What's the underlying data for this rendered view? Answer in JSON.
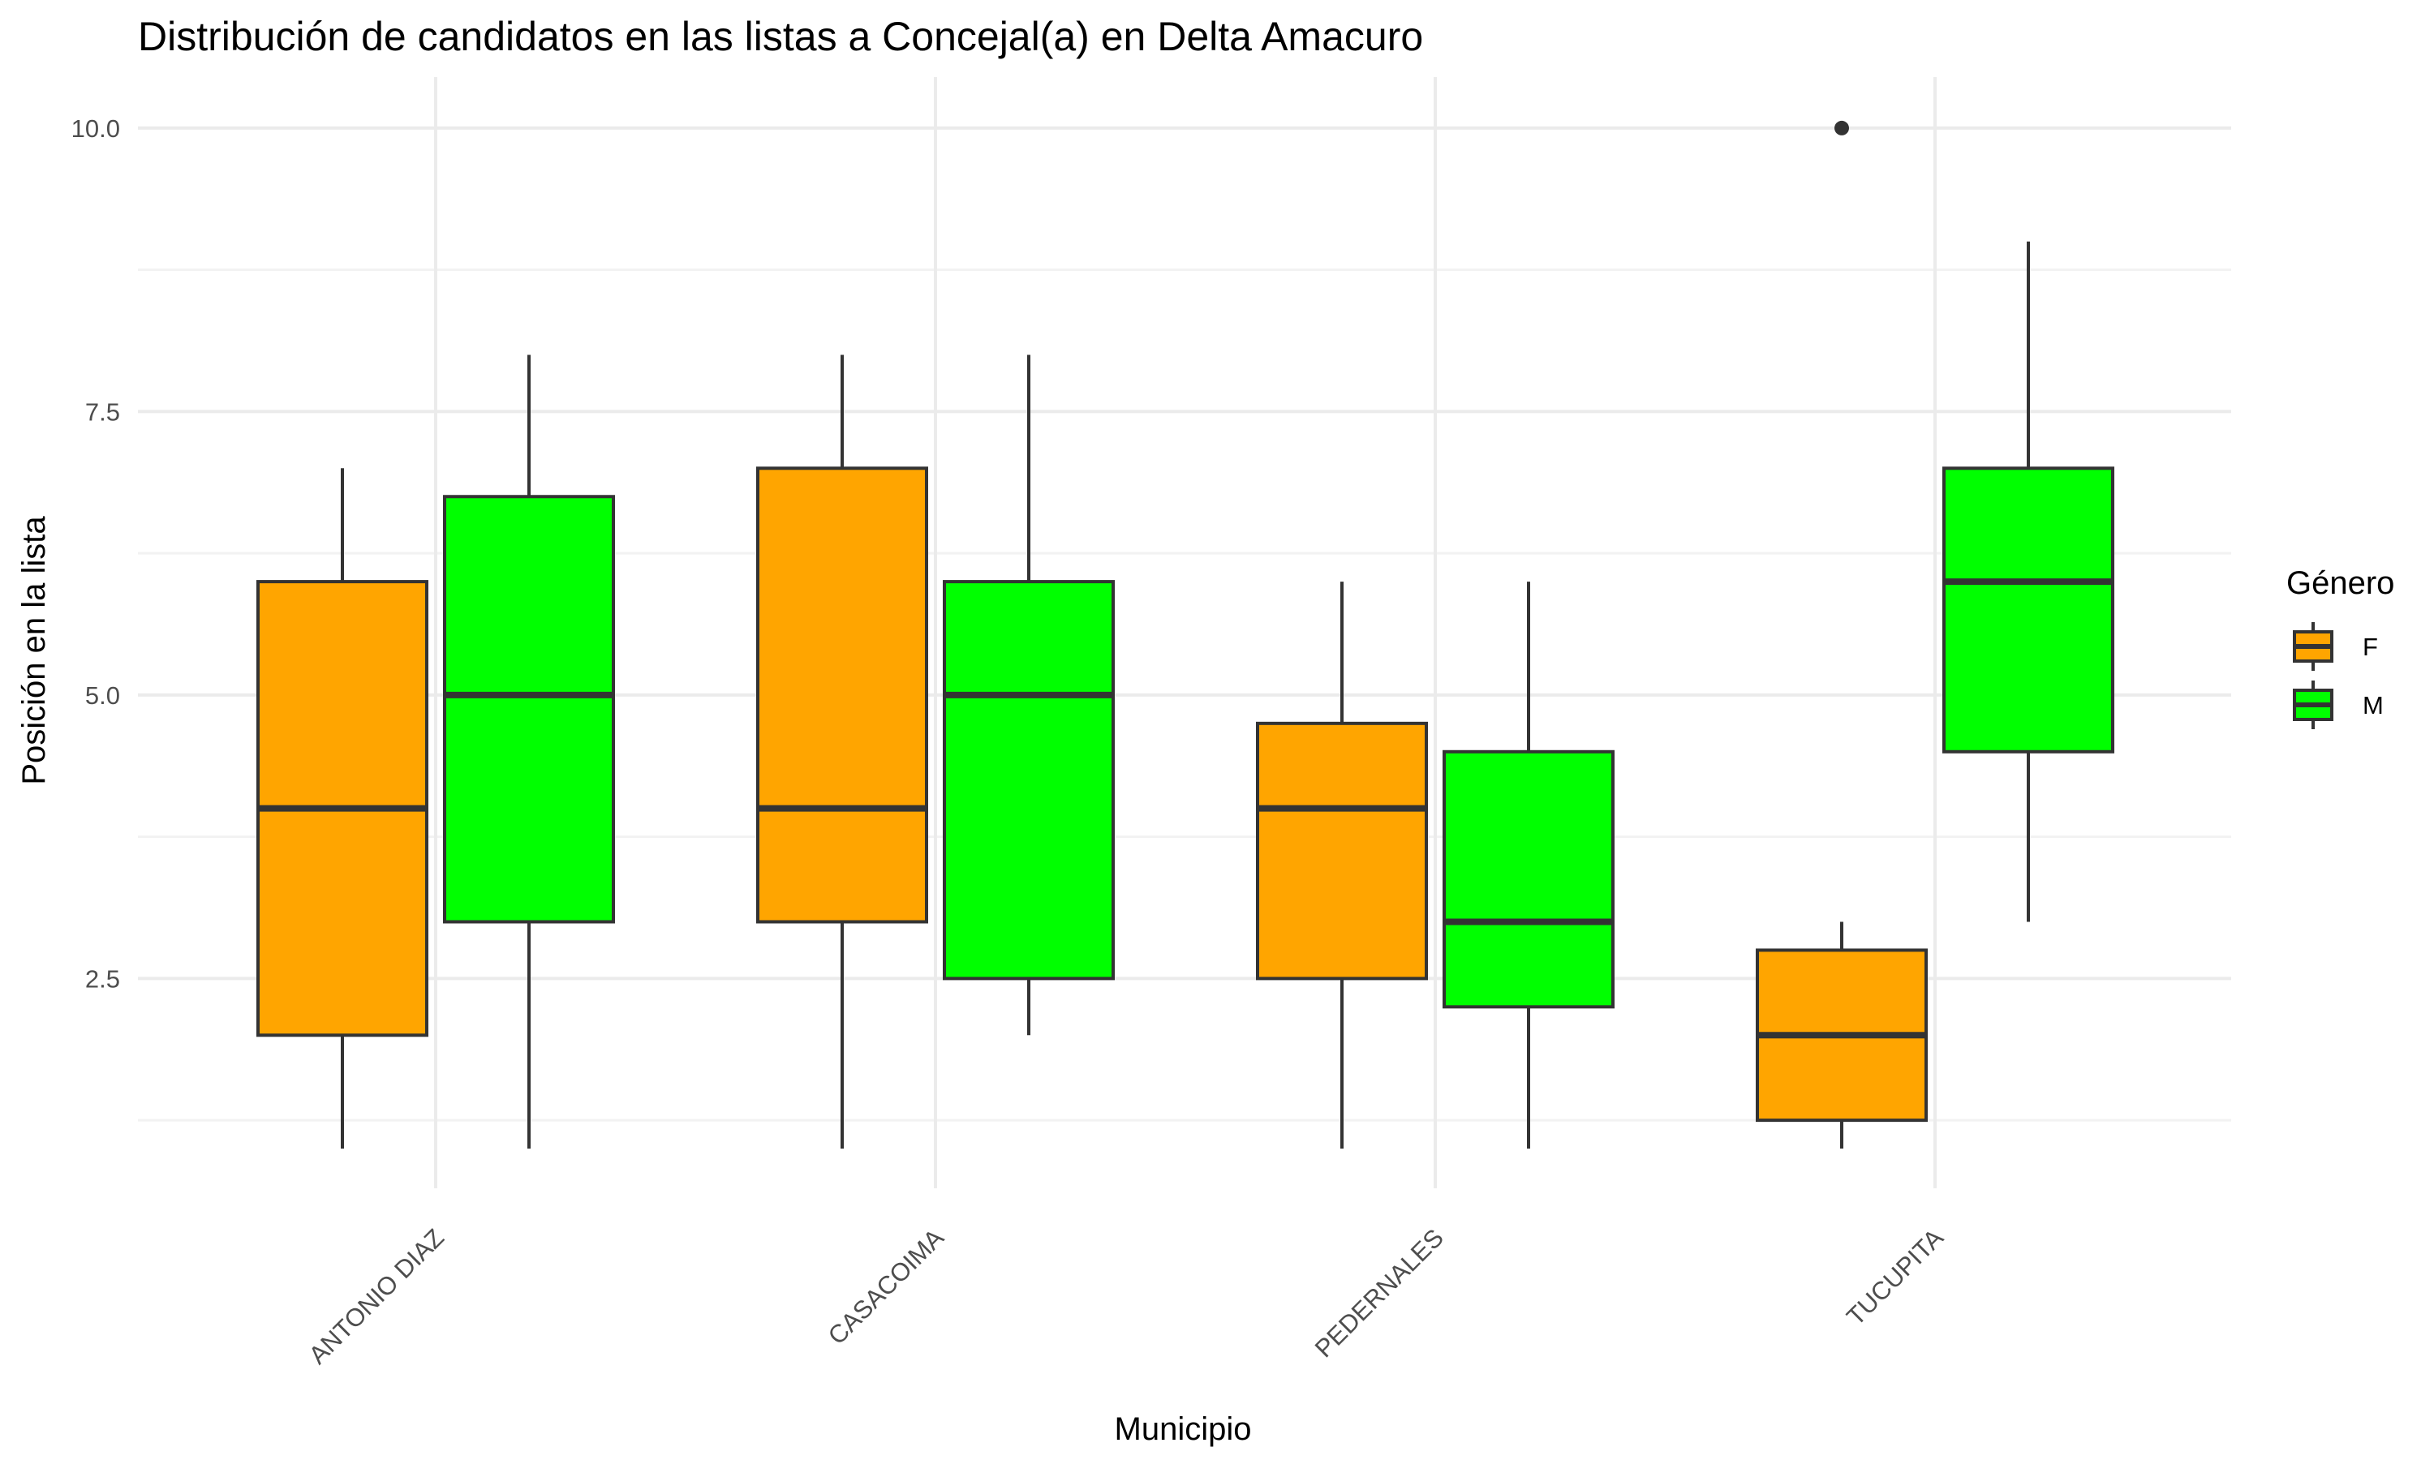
{
  "chart_data": {
    "type": "boxplot",
    "title": "Distribución de candidatos en las listas a Concejal(a) en Delta Amacuro",
    "xlabel": "Municipio",
    "ylabel": "Posición en la lista",
    "categories": [
      "ANTONIO DIAZ",
      "CASACOIMA",
      "PEDERNALES",
      "TUCUPITA"
    ],
    "y_ticks": [
      "2.5",
      "5.0",
      "7.5",
      "10.0"
    ],
    "ylim": [
      0.65,
      10.45
    ],
    "grid": true,
    "legend": {
      "title": "Género",
      "position": "right",
      "entries": [
        {
          "label": "F",
          "color": "#FFA500"
        },
        {
          "label": "M",
          "color": "#00FF00"
        }
      ]
    },
    "series": [
      {
        "name": "F",
        "color": "#FFA500",
        "boxes": [
          {
            "min": 1,
            "q1": 2,
            "median": 4,
            "q3": 6,
            "max": 7,
            "outliers": []
          },
          {
            "min": 1,
            "q1": 3,
            "median": 4,
            "q3": 7,
            "max": 8,
            "outliers": []
          },
          {
            "min": 1,
            "q1": 2.5,
            "median": 4,
            "q3": 4.75,
            "max": 6,
            "outliers": []
          },
          {
            "min": 1,
            "q1": 1.25,
            "median": 2,
            "q3": 2.75,
            "max": 3,
            "outliers": [
              10
            ]
          }
        ]
      },
      {
        "name": "M",
        "color": "#00FF00",
        "boxes": [
          {
            "min": 1,
            "q1": 3,
            "median": 5,
            "q3": 6.75,
            "max": 8,
            "outliers": []
          },
          {
            "min": 2,
            "q1": 2.5,
            "median": 5,
            "q3": 6,
            "max": 8,
            "outliers": []
          },
          {
            "min": 1,
            "q1": 2.25,
            "median": 3,
            "q3": 4.5,
            "max": 6,
            "outliers": []
          },
          {
            "min": 3,
            "q1": 4.5,
            "median": 6,
            "q3": 7,
            "max": 9,
            "outliers": []
          }
        ]
      }
    ]
  }
}
